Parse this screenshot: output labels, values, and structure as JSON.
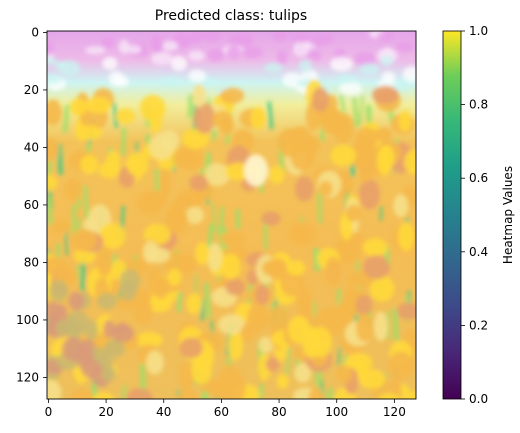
{
  "chart_data": {
    "type": "heatmap",
    "title": "Predicted class: tulips",
    "xlabel": "",
    "ylabel": "",
    "xlim": [
      0,
      127
    ],
    "ylim": [
      127,
      0
    ],
    "x_ticks": [
      0,
      20,
      40,
      60,
      80,
      100,
      120
    ],
    "y_ticks": [
      0,
      20,
      40,
      60,
      80,
      100,
      120
    ],
    "colorbar": {
      "label": "Heatmap Values",
      "range": [
        0.0,
        1.0
      ],
      "ticks": [
        "0.0",
        "0.2",
        "0.4",
        "0.6",
        "0.8",
        "1.0"
      ],
      "colormap": "viridis"
    },
    "overlay": "heatmap blended over image of a tulip field",
    "image_colors": {
      "flowers": "#f5b84a",
      "flowers_bright": "#ffd93a",
      "foliage": "#9be06a",
      "sky_band": "#c8f4f0",
      "top_band": "#e89ee8"
    }
  }
}
